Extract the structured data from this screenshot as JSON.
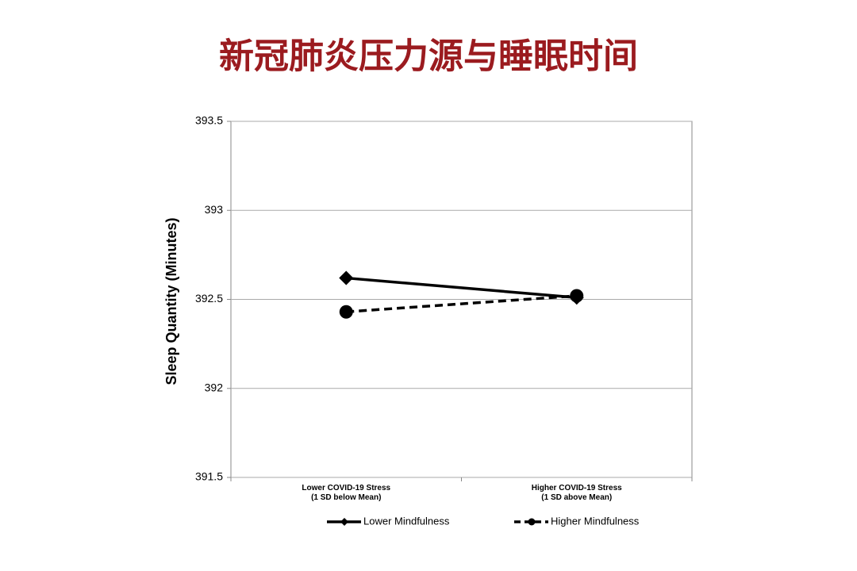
{
  "chart_data": {
    "type": "line",
    "title": "新冠肺炎压力源与睡眠时间",
    "y_label": "Sleep Quantity (Minutes)",
    "categories": [
      "Lower COVID-19 Stress\n(1 SD below Mean)",
      "Higher COVID-19 Stress\n(1 SD above Mean)"
    ],
    "series": [
      {
        "name": "Lower Mindfulness",
        "color": "#000000",
        "dash": false,
        "marker": "diamond",
        "values": [
          392.62,
          392.51
        ]
      },
      {
        "name": "Higher Mindfulness",
        "color": "#000000",
        "dash": true,
        "marker": "circle",
        "values": [
          392.43,
          392.52
        ]
      }
    ],
    "ylim": [
      391.5,
      393.5
    ],
    "yticks": [
      391.5,
      392,
      392.5,
      393,
      393.5
    ],
    "grid": true,
    "legend": "bottom"
  }
}
